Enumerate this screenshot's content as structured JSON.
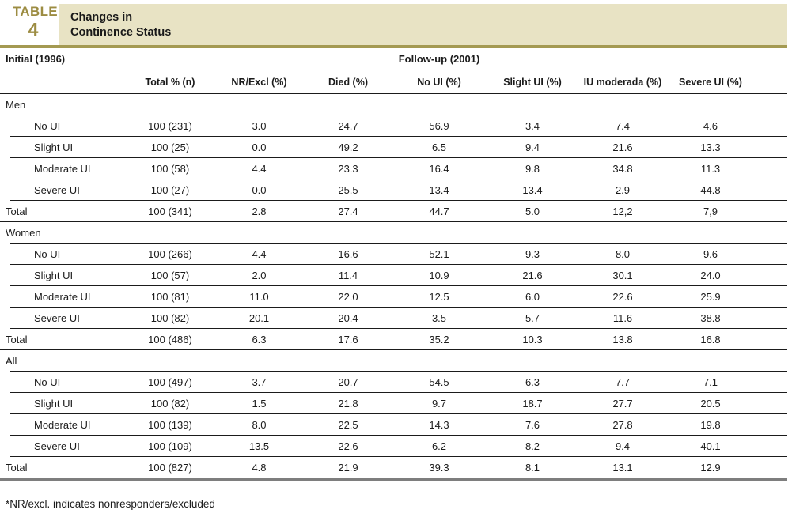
{
  "header": {
    "table_label": "TABLE",
    "table_number": "4",
    "title_line1": "Changes in",
    "title_line2": "Continence Status"
  },
  "colors": {
    "accent_gold_text": "#9c8c42",
    "band_beige": "#e8e3c4",
    "rule_olive": "#a49a52",
    "thick_bottom_gray": "#7e7e7e",
    "text": "#1b1b1b"
  },
  "table": {
    "initial_label": "Initial (1996)",
    "followup_label": "Follow-up (2001)",
    "columns": [
      "Total % (n)",
      "NR/Excl (%)",
      "Died (%)",
      "No UI (%)",
      "Slight UI (%)",
      "IU moderada (%)",
      "Severe UI (%)"
    ],
    "sections": [
      {
        "name": "Men",
        "rows": [
          {
            "label": "No UI",
            "values": [
              "100 (231)",
              "3.0",
              "24.7",
              "56.9",
              "3.4",
              "7.4",
              "4.6"
            ]
          },
          {
            "label": "Slight UI",
            "values": [
              "100 (25)",
              "0.0",
              "49.2",
              "6.5",
              "9.4",
              "21.6",
              "13.3"
            ]
          },
          {
            "label": "Moderate UI",
            "values": [
              "100 (58)",
              "4.4",
              "23.3",
              "16.4",
              "9.8",
              "34.8",
              "11.3"
            ]
          },
          {
            "label": "Severe UI",
            "values": [
              "100 (27)",
              "0.0",
              "25.5",
              "13.4",
              "13.4",
              "2.9",
              "44.8"
            ]
          },
          {
            "label": "Total",
            "values": [
              "100 (341)",
              "2.8",
              "27.4",
              "44.7",
              "5.0",
              "12,2",
              "7,9"
            ]
          }
        ]
      },
      {
        "name": "Women",
        "rows": [
          {
            "label": "No UI",
            "values": [
              "100 (266)",
              "4.4",
              "16.6",
              "52.1",
              "9.3",
              "8.0",
              "9.6"
            ]
          },
          {
            "label": "Slight UI",
            "values": [
              "100 (57)",
              "2.0",
              "11.4",
              "10.9",
              "21.6",
              "30.1",
              "24.0"
            ]
          },
          {
            "label": "Moderate UI",
            "values": [
              "100 (81)",
              "11.0",
              "22.0",
              "12.5",
              "6.0",
              "22.6",
              "25.9"
            ]
          },
          {
            "label": "Severe UI",
            "values": [
              "100 (82)",
              "20.1",
              "20.4",
              "3.5",
              "5.7",
              "11.6",
              "38.8"
            ]
          },
          {
            "label": "Total",
            "values": [
              "100 (486)",
              "6.3",
              "17.6",
              "35.2",
              "10.3",
              "13.8",
              "16.8"
            ]
          }
        ]
      },
      {
        "name": "All",
        "rows": [
          {
            "label": "No UI",
            "values": [
              "100 (497)",
              "3.7",
              "20.7",
              "54.5",
              "6.3",
              "7.7",
              "7.1"
            ]
          },
          {
            "label": "Slight UI",
            "values": [
              "100 (82)",
              "1.5",
              "21.8",
              "9.7",
              "18.7",
              "27.7",
              "20.5"
            ]
          },
          {
            "label": "Moderate UI",
            "values": [
              "100 (139)",
              "8.0",
              "22.5",
              "14.3",
              "7.6",
              "27.8",
              "19.8"
            ]
          },
          {
            "label": "Severe UI",
            "values": [
              "100 (109)",
              "13.5",
              "22.6",
              "6.2",
              "8.2",
              "9.4",
              "40.1"
            ]
          },
          {
            "label": "Total",
            "values": [
              "100 (827)",
              "4.8",
              "21.9",
              "39.3",
              "8.1",
              "13.1",
              "12.9"
            ]
          }
        ]
      }
    ],
    "footnote": "*NR/excl. indicates nonresponders/excluded"
  }
}
